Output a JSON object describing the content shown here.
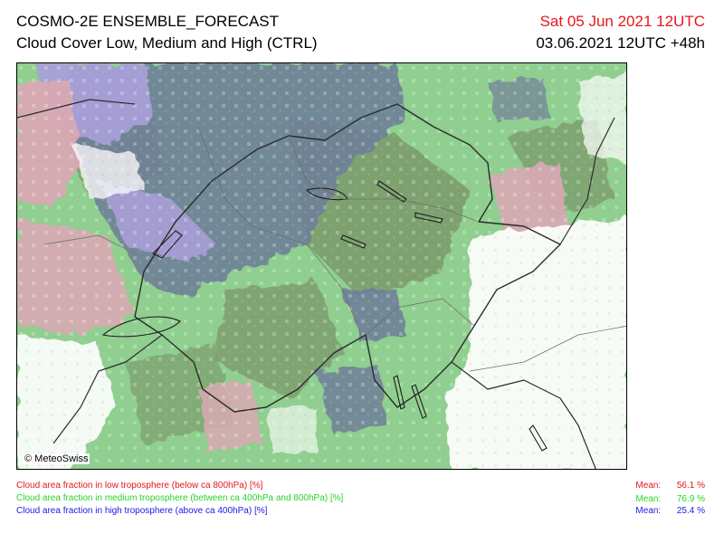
{
  "header": {
    "title": "COSMO-2E ENSEMBLE_FORECAST",
    "subtitle": "Cloud Cover Low, Medium and High (CTRL)",
    "valid_time": "Sat 05 Jun 2021 12UTC",
    "init_time": "03.06.2021 12UTC +48h"
  },
  "map": {
    "copyright": "© MeteoSwiss"
  },
  "legend": {
    "mean_label": "Mean:",
    "items": [
      {
        "label": "Cloud area fraction in low troposphere (below ca 800hPa) [%]",
        "mean": "56.1 %",
        "color": "#e8151b"
      },
      {
        "label": "Cloud area fraction in medium troposphere (between ca 400hPa and 800hPa) [%]",
        "mean": "76.9 %",
        "color": "#2bd12b"
      },
      {
        "label": "Cloud area fraction in high troposphere (above ca 400hPa) [%]",
        "mean": "25.4 %",
        "color": "#1a1ae6"
      }
    ]
  },
  "colors": {
    "green": "#8fcf8f",
    "dark_green": "#7a9a6a",
    "pink": "#d9a9b4",
    "blue_grey": "#6f7f98",
    "lavender": "#a79fd8",
    "white": "#ffffff"
  }
}
